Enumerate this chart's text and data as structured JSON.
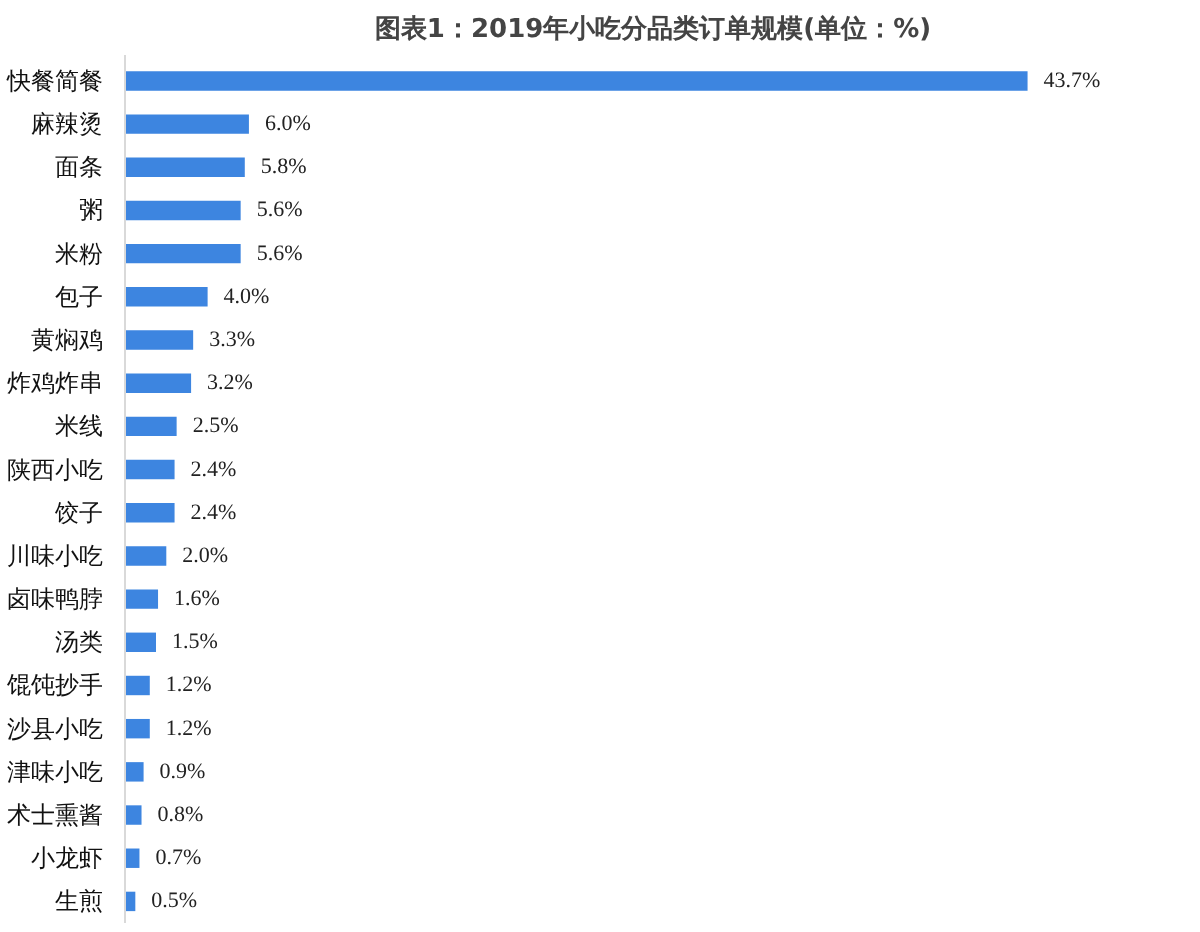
{
  "chart_data": {
    "type": "bar",
    "orientation": "horizontal",
    "title": "图表1：2019年小吃分品类订单规模(单位：%)",
    "categories": [
      "快餐简餐",
      "麻辣烫",
      "面条",
      "粥",
      "米粉",
      "包子",
      "黄焖鸡",
      "炸鸡炸串",
      "米线",
      "陕西小吃",
      "饺子",
      "川味小吃",
      "卤味鸭脖",
      "汤类",
      "馄饨抄手",
      "沙县小吃",
      "津味小吃",
      "术士熏酱",
      "小龙虾",
      "生煎"
    ],
    "values": [
      43.7,
      6.0,
      5.8,
      5.6,
      5.6,
      4.0,
      3.3,
      3.2,
      2.5,
      2.4,
      2.4,
      2.0,
      1.6,
      1.5,
      1.2,
      1.2,
      0.9,
      0.8,
      0.7,
      0.5
    ],
    "value_labels": [
      "43.7%",
      "6.0%",
      "5.8%",
      "5.6%",
      "5.6%",
      "4.0%",
      "3.3%",
      "3.2%",
      "2.5%",
      "2.4%",
      "2.4%",
      "2.0%",
      "1.6%",
      "1.5%",
      "1.2%",
      "1.2%",
      "0.9%",
      "0.8%",
      "0.7%",
      "0.5%"
    ],
    "color": "#3d85e0",
    "grid": false
  }
}
